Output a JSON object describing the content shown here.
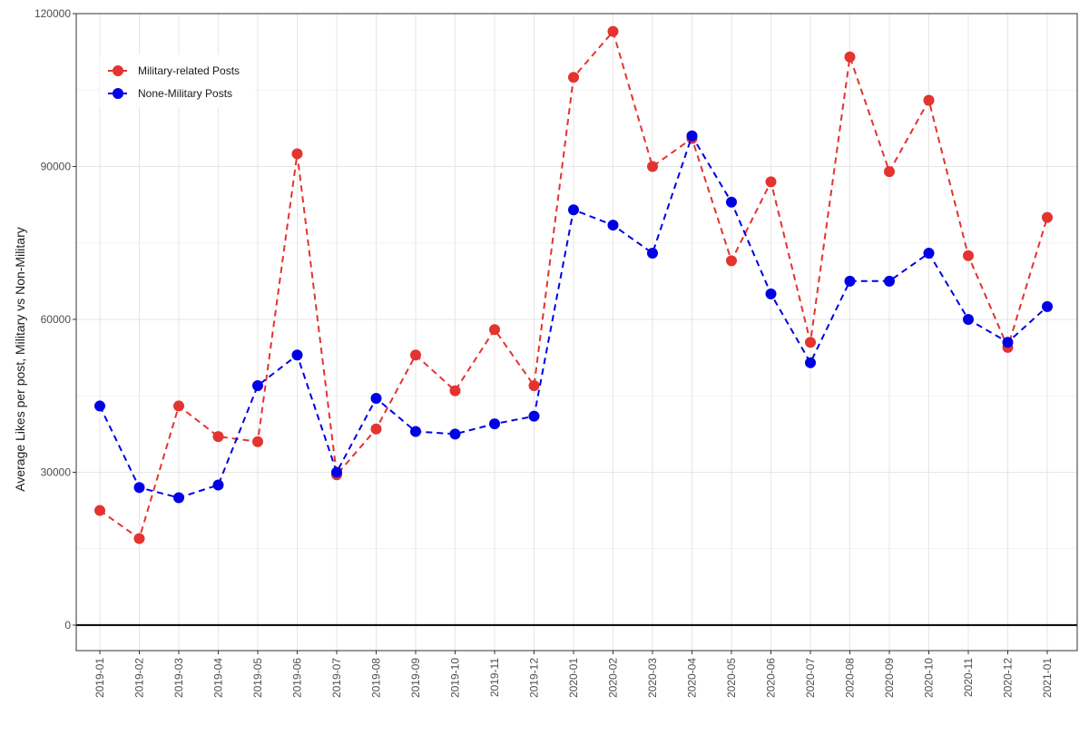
{
  "chart_data": {
    "type": "line",
    "title": "",
    "xlabel": "",
    "ylabel": "Average Likes per post, Military vs Non-Military",
    "ylim": [
      -5000,
      120000
    ],
    "yticks": [
      0,
      30000,
      60000,
      90000,
      120000
    ],
    "ytick_labels": [
      "0",
      "30000",
      "60000",
      "90000",
      "120000"
    ],
    "grid": true,
    "legend_position": "top-left",
    "reference_line": {
      "y": 0,
      "color": "#000000"
    },
    "categories": [
      "2019-01",
      "2019-02",
      "2019-03",
      "2019-04",
      "2019-05",
      "2019-06",
      "2019-07",
      "2019-08",
      "2019-09",
      "2019-10",
      "2019-11",
      "2019-12",
      "2020-01",
      "2020-02",
      "2020-03",
      "2020-04",
      "2020-05",
      "2020-06",
      "2020-07",
      "2020-08",
      "2020-09",
      "2020-10",
      "2020-11",
      "2020-12",
      "2021-01"
    ],
    "series": [
      {
        "name": "Military-related Posts",
        "color": "#e3342f",
        "line_style": "dashed",
        "values": [
          22500,
          17000,
          43000,
          37000,
          36000,
          92500,
          29500,
          38500,
          53000,
          46000,
          58000,
          47000,
          107500,
          116500,
          90000,
          95500,
          71500,
          87000,
          55500,
          111500,
          89000,
          103000,
          72500,
          54500,
          80000
        ]
      },
      {
        "name": "None-Military Posts",
        "color": "#0000e6",
        "line_style": "dashed",
        "values": [
          43000,
          27000,
          25000,
          27500,
          47000,
          53000,
          30000,
          44500,
          38000,
          37500,
          39500,
          41000,
          81500,
          78500,
          73000,
          96000,
          83000,
          65000,
          51500,
          67500,
          67500,
          73000,
          60000,
          55500,
          62500
        ]
      }
    ]
  }
}
